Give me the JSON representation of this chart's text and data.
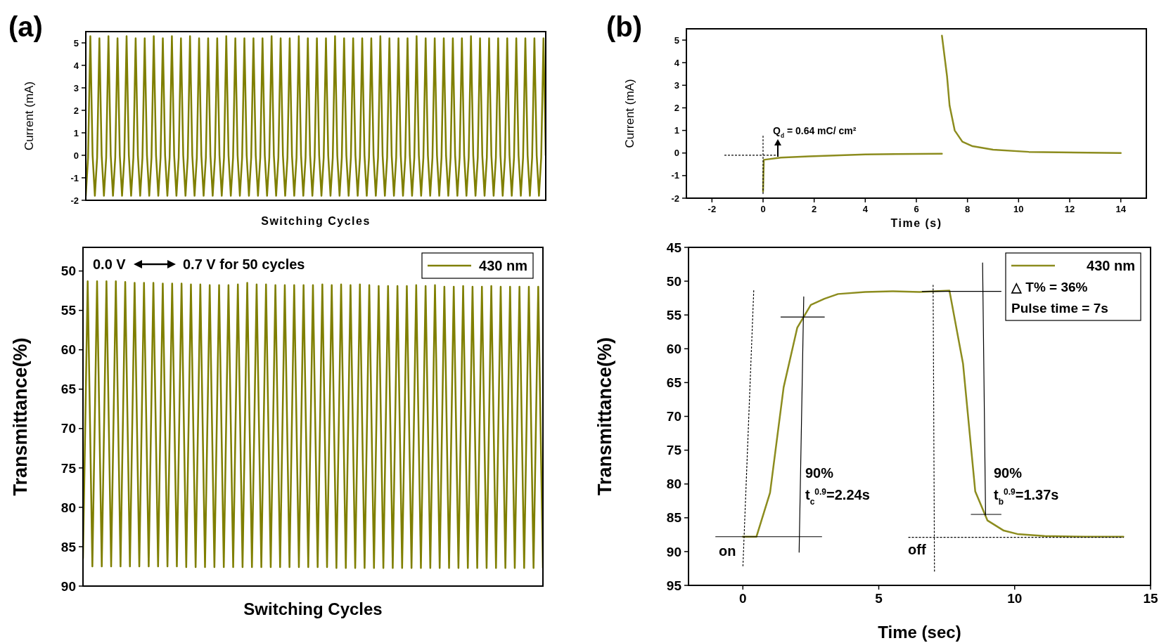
{
  "chart_data": [
    {
      "type": "line",
      "title": "(a)",
      "xlabel": "Switching Cycles",
      "ylabel": "Current (mA)",
      "ylim": [
        -2,
        5.5
      ],
      "yticks": [
        -2,
        -1,
        0,
        1,
        2,
        3,
        4,
        5
      ],
      "categories": [
        null,
        null,
        null,
        null,
        null,
        null,
        null,
        null,
        null,
        null,
        null,
        null,
        null,
        null,
        null,
        null,
        null,
        null,
        null,
        null,
        null,
        null,
        null,
        null,
        null,
        null,
        null,
        null,
        null,
        null,
        null,
        null,
        null,
        null,
        null,
        null,
        null,
        null,
        null,
        null,
        null,
        null,
        null,
        null,
        null,
        null,
        null,
        null,
        null,
        null,
        null,
        null,
        null,
        null,
        null,
        null,
        null,
        null,
        null,
        null,
        null,
        null,
        null,
        null,
        null,
        null,
        null,
        null,
        null,
        null,
        null,
        null,
        null,
        null,
        null,
        null,
        null,
        null,
        null,
        null,
        null,
        null,
        null,
        null,
        null,
        null,
        null,
        null,
        null,
        null,
        null,
        null,
        null,
        null,
        null,
        null,
        null,
        null,
        null,
        null,
        null,
        null,
        null,
        null,
        null,
        null,
        null,
        null,
        null,
        null,
        null,
        null,
        null,
        null,
        null,
        null,
        null,
        null,
        null,
        null,
        null,
        null,
        null,
        null,
        null,
        null,
        null,
        null,
        null,
        null,
        null,
        null,
        null,
        null,
        null,
        null,
        null,
        null,
        null,
        null,
        null,
        null,
        null,
        null,
        null,
        null,
        null,
        null,
        null,
        null,
        null,
        null,
        null,
        null,
        null,
        null,
        null,
        null,
        null,
        null,
        null,
        null,
        null,
        null,
        null,
        null,
        null,
        null,
        null,
        null,
        null,
        null,
        null,
        null,
        null,
        null,
        null,
        null,
        null,
        null,
        null,
        null,
        null,
        null,
        null,
        null,
        null,
        null,
        null,
        null,
        null,
        null,
        null,
        null,
        null,
        null,
        null,
        null,
        null,
        null,
        null,
        null,
        null,
        null
      ],
      "series": [
        {
          "color": "#7f7f00",
          "values": [
            -1.8,
            -0.1,
            5.3,
            0,
            -1.8,
            -0.1,
            5.2,
            0,
            -1.8,
            -0.1,
            5.3,
            0,
            -1.8,
            -0.1,
            5.2,
            0,
            -1.8,
            -0.1,
            5.3,
            0,
            -1.8,
            -0.1,
            5.2,
            0,
            -1.8,
            -0.1,
            5.2,
            0,
            -1.8,
            -0.1,
            5.3,
            0,
            -1.8,
            -0.1,
            5.2,
            0,
            -1.8,
            -0.1,
            5.3,
            0,
            -1.8,
            -0.1,
            5.2,
            0,
            -1.8,
            -0.1,
            5.3,
            0,
            -1.8,
            -0.1,
            5.2,
            0,
            -1.8,
            -0.1,
            5.2,
            0,
            -1.8,
            -0.1,
            5.2,
            0,
            -1.8,
            -0.1,
            5.3,
            0,
            -1.8,
            -0.1,
            5.2,
            0,
            -1.8,
            -0.1,
            5.2,
            0,
            -1.8,
            -0.1,
            5.2,
            0,
            -1.8,
            -0.1,
            5.2,
            0,
            -1.8,
            -0.1,
            5.3,
            0,
            -1.8,
            -0.1,
            5.2,
            0,
            -1.8,
            -0.1,
            5.2,
            0,
            -1.8,
            -0.1,
            5.3,
            0,
            -1.8,
            -0.1,
            5.2,
            0,
            -1.8,
            -0.1,
            5.2,
            0,
            -1.8,
            -0.1,
            5.2,
            0,
            -1.8,
            -0.1,
            5.3,
            0,
            -1.8,
            -0.1,
            5.2,
            0,
            -1.8,
            -0.1,
            5.2,
            0,
            -1.8,
            -0.1,
            5.2,
            0,
            -1.8,
            -0.1,
            5.2,
            0,
            -1.8,
            -0.1,
            5.3,
            0,
            -1.8,
            -0.1,
            5.2,
            0,
            -1.8,
            -0.1,
            5.2,
            0,
            -1.8,
            -0.1,
            5.2,
            0,
            -1.8,
            -0.1,
            5.3,
            0,
            -1.8,
            -0.1,
            5.2,
            0,
            -1.8,
            -0.1,
            5.2,
            0,
            -1.8,
            -0.1,
            5.2,
            0,
            -1.8,
            -0.1,
            5.2,
            0,
            -1.8,
            -0.1,
            5.2,
            0,
            -1.8,
            -0.1,
            5.3,
            0,
            -1.8,
            -0.1,
            5.2,
            0,
            -1.8,
            -0.1,
            5.2,
            0,
            -1.8,
            -0.1,
            5.2,
            0,
            -1.8,
            -0.1,
            5.2,
            0,
            -1.8,
            -0.1,
            5.2,
            0,
            -1.8,
            -0.1,
            5.2,
            0,
            -1.8,
            -0.1,
            5.2,
            0,
            -1.8,
            -0.1,
            5.2,
            0
          ]
        }
      ]
    },
    {
      "type": "line",
      "title": "(b)",
      "xlabel": "Time (s)",
      "ylabel": "Current (mA)",
      "xlim": [
        -3,
        15
      ],
      "xticks": [
        -2,
        0,
        2,
        4,
        6,
        8,
        10,
        12,
        14
      ],
      "ylim": [
        -2,
        5.5
      ],
      "yticks": [
        -2,
        -1,
        0,
        1,
        2,
        3,
        4,
        5
      ],
      "annotations": [
        "Q$_{d}$ = 0.64 mC/ cm²"
      ],
      "series": [
        {
          "color": "#8c8c1e",
          "x": [
            0,
            0.03,
            0.7,
            1.8,
            4,
            7,
            null,
            7,
            7.2,
            7.3,
            7.5,
            7.8,
            8.2,
            9,
            10.4,
            14
          ],
          "values": [
            -1.7,
            -0.3,
            -0.2,
            -0.15,
            -0.06,
            -0.03,
            null,
            5.2,
            3.4,
            2.1,
            1,
            0.5,
            0.3,
            0.15,
            0.05,
            0
          ]
        },
        {
          "color": "#000000",
          "line_style": "dotted",
          "x": [
            0,
            0
          ],
          "values": [
            -1.8,
            0.8
          ]
        },
        {
          "color": "#000000",
          "line_style": "dotted",
          "x": [
            -1.5,
            0.5
          ],
          "values": [
            -0.1,
            -0.1
          ]
        }
      ]
    },
    {
      "type": "line",
      "xlabel": "Switching Cycles",
      "ylabel": "Transmittance(%)",
      "ylim": [
        90,
        47
      ],
      "yticks": [
        50,
        55,
        60,
        65,
        70,
        75,
        80,
        85,
        90
      ],
      "legend": "top right",
      "annotations": [
        "0.0 V",
        "0.7 V for 50 cycles"
      ],
      "categories": [
        null,
        null,
        null,
        null,
        null,
        null,
        null,
        null,
        null,
        null,
        null,
        null,
        null,
        null,
        null,
        null,
        null,
        null,
        null,
        null,
        null,
        null,
        null,
        null,
        null,
        null,
        null,
        null,
        null,
        null,
        null,
        null,
        null,
        null,
        null,
        null,
        null,
        null,
        null,
        null,
        null,
        null,
        null,
        null,
        null,
        null,
        null,
        null,
        null,
        null,
        null,
        null,
        null,
        null,
        null,
        null,
        null,
        null,
        null,
        null,
        null,
        null,
        null,
        null,
        null,
        null,
        null,
        null,
        null,
        null,
        null,
        null,
        null,
        null,
        null,
        null,
        null,
        null,
        null,
        null,
        null,
        null,
        null,
        null,
        null,
        null,
        null,
        null,
        null,
        null,
        null,
        null,
        null,
        null,
        null,
        null,
        null,
        null,
        null
      ],
      "series": [
        {
          "name": "430 nm",
          "color": "#7f7f00",
          "values": [
            86.5,
            51.3,
            87.5,
            51.3,
            87.5,
            51.3,
            87.5,
            51.3,
            87.5,
            51.4,
            87.5,
            51.5,
            87.5,
            51.5,
            87.5,
            51.5,
            87.5,
            51.6,
            87.5,
            51.6,
            87.5,
            51.6,
            87.6,
            51.7,
            87.6,
            51.7,
            87.6,
            51.8,
            87.6,
            51.8,
            87.6,
            51.8,
            87.6,
            51.7,
            87.6,
            51.5,
            87.6,
            51.7,
            87.6,
            51.7,
            87.6,
            51.8,
            87.6,
            51.8,
            87.6,
            51.8,
            87.6,
            51.8,
            87.6,
            51.8,
            87.6,
            51.7,
            87.6,
            51.8,
            87.7,
            51.7,
            87.7,
            51.8,
            87.7,
            51.7,
            87.7,
            51.8,
            87.7,
            51.9,
            87.7,
            51.9,
            87.7,
            51.9,
            87.7,
            51.9,
            87.7,
            51.8,
            87.7,
            51.9,
            87.7,
            51.8,
            87.7,
            52,
            87.7,
            52,
            87.7,
            51.9,
            87.7,
            52,
            87.7,
            52,
            87.7,
            51.9,
            87.7,
            52,
            87.7,
            52,
            87.7,
            52,
            87.7,
            52,
            87.7,
            52,
            87.7
          ]
        }
      ]
    },
    {
      "type": "line",
      "xlabel": "Time (sec)",
      "ylabel": "Transmittance(%)",
      "xlim": [
        -2,
        15
      ],
      "xticks": [
        0,
        5,
        10,
        15
      ],
      "ylim": [
        95,
        45
      ],
      "yticks": [
        45,
        50,
        55,
        60,
        65,
        70,
        75,
        80,
        85,
        90,
        95
      ],
      "legend": "top right",
      "annotations": [
        "△ T% = 36%",
        "Pulse time = 7s",
        "on",
        "off",
        "90%",
        "t$_{c}$$^{0.9}$=2.24s",
        "90%",
        "t$_{b}$$^{0.9}$=1.37s"
      ],
      "series": [
        {
          "name": "430 nm",
          "color": "#8c8c1e",
          "x": [
            0,
            0.5,
            1,
            1.5,
            2,
            2.5,
            3,
            3.5,
            4.5,
            5.5,
            6.5,
            7.6,
            8.1,
            8.55,
            9,
            9.6,
            10.1,
            11.1,
            12.6,
            14
          ],
          "values": [
            87.8,
            87.8,
            81.3,
            65.7,
            56.9,
            53.5,
            52.6,
            51.9,
            51.6,
            51.5,
            51.6,
            51.4,
            62.2,
            81.1,
            85.4,
            86.9,
            87.4,
            87.7,
            87.8,
            87.8
          ]
        },
        {
          "color": "#000000",
          "line_style": "solid",
          "x": [
            2.24,
            2.07
          ],
          "values": [
            52.3,
            90.1
          ]
        },
        {
          "color": "#000000",
          "line_style": "solid",
          "x": [
            8.82,
            8.93
          ],
          "values": [
            47.3,
            84.6
          ]
        },
        {
          "color": "#000000",
          "line_style": "solid",
          "x": [
            -1,
            2.9
          ],
          "values": [
            87.8,
            87.8
          ]
        },
        {
          "color": "#000000",
          "line_style": "solid",
          "x": [
            1.4,
            3
          ],
          "values": [
            55.3,
            55.3
          ]
        },
        {
          "color": "#000000",
          "line_style": "solid",
          "x": [
            6.6,
            9.5
          ],
          "values": [
            51.5,
            51.5
          ]
        },
        {
          "color": "#000000",
          "line_style": "solid",
          "x": [
            8.4,
            9.5
          ],
          "values": [
            84.5,
            84.5
          ]
        },
        {
          "color": "#000000",
          "line_style": "dotted",
          "x": [
            0.4,
            0
          ],
          "values": [
            51.4,
            92.4
          ]
        },
        {
          "color": "#000000",
          "line_style": "dotted",
          "x": [
            7,
            7.05
          ],
          "values": [
            50.6,
            93
          ]
        },
        {
          "color": "#000000",
          "line_style": "dotted",
          "x": [
            6.1,
            14
          ],
          "values": [
            87.9,
            87.9
          ]
        }
      ]
    }
  ]
}
